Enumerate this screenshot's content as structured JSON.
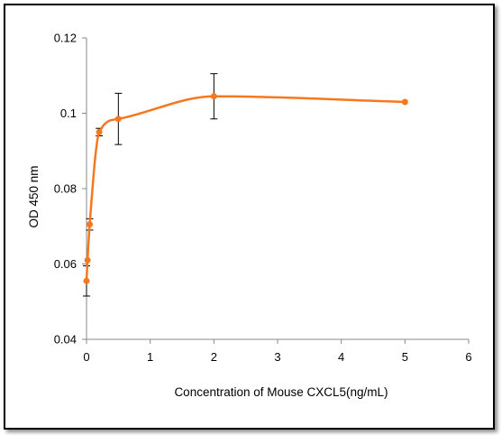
{
  "chart_data": {
    "type": "scatter",
    "title": "",
    "xlabel": "Concentration of Mouse CXCL5(ng/mL)",
    "ylabel": "OD 450 nm",
    "xlim": [
      0,
      6
    ],
    "ylim": [
      0.04,
      0.12
    ],
    "x_ticks": [
      "0",
      "1",
      "2",
      "3",
      "4",
      "5",
      "6"
    ],
    "y_ticks": [
      "0.04",
      "0.06",
      "0.08",
      "0.1",
      "0.12"
    ],
    "grid": false,
    "legend": "none",
    "series": [
      {
        "x": [
          0,
          0.016,
          0.05,
          0.2,
          0.5,
          2,
          5
        ],
        "y": [
          0.0555,
          0.061,
          0.0705,
          0.095,
          0.0985,
          0.1045,
          0.103
        ],
        "error": [
          0.004,
          null,
          0.0015,
          0.001,
          0.0068,
          0.006,
          null
        ],
        "color": "#F5781E"
      }
    ]
  }
}
